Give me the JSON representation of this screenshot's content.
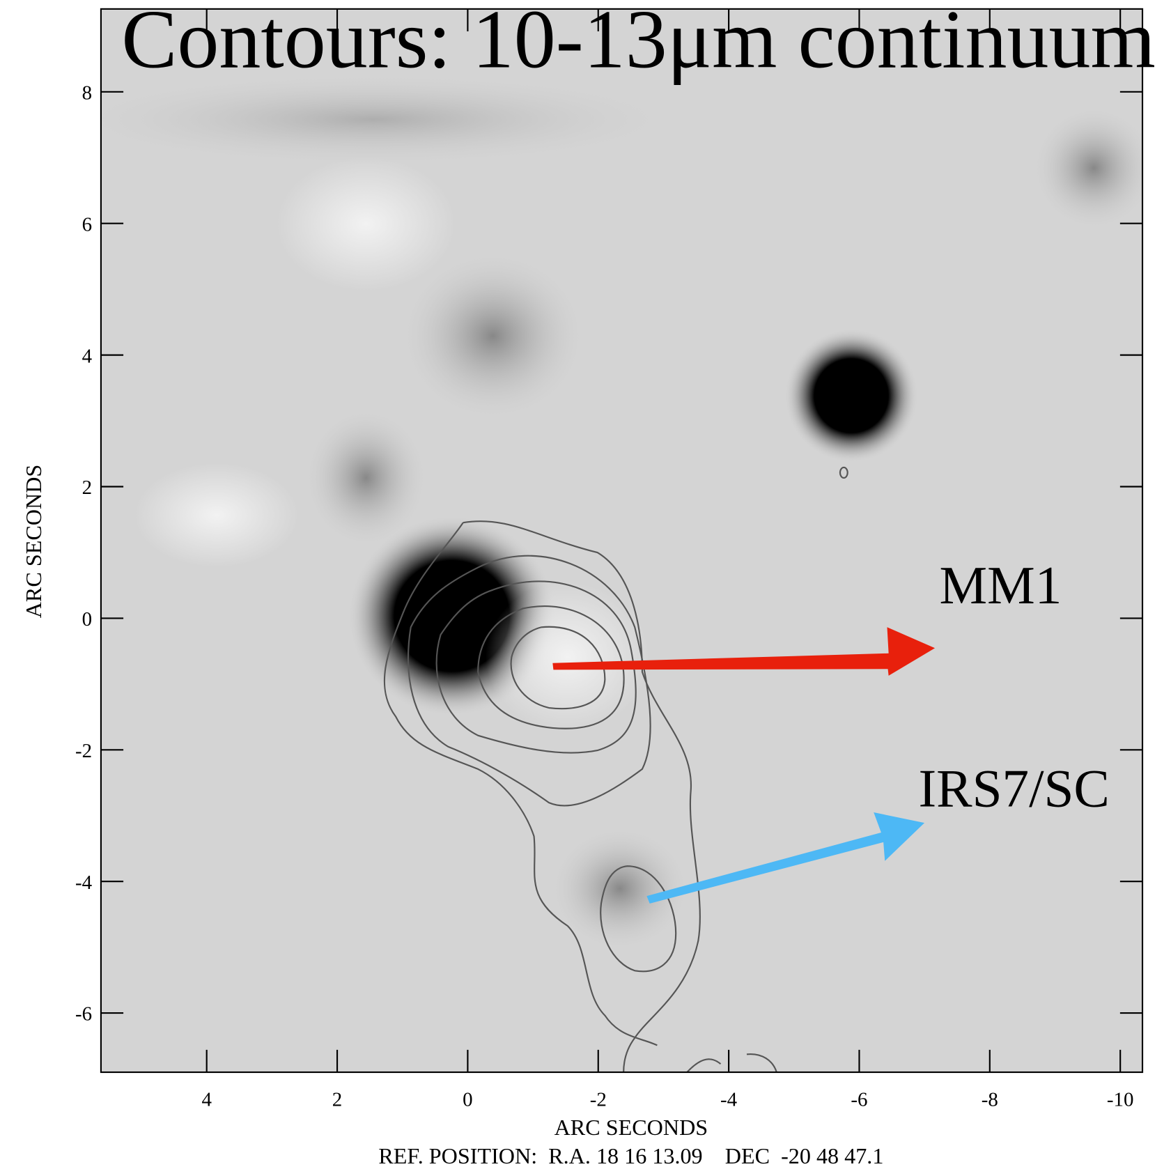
{
  "chart_data": {
    "type": "image",
    "title": "Contours: 10-13μm continuum",
    "xlabel": "ARC SECONDS",
    "ylabel": "ARC SECONDS",
    "footnote": "REF. POSITION:  R.A. 18 16 13.09    DEC  -20 48 47.1",
    "xlim": [
      5.62,
      -10.34
    ],
    "ylim": [
      -6.9,
      9.26
    ],
    "xticks": [
      4,
      2,
      0,
      -2,
      -4,
      -6,
      -8,
      -10
    ],
    "yticks": [
      -6,
      -4,
      -2,
      0,
      2,
      4,
      6,
      8
    ],
    "annotations": [
      {
        "text": "MM1",
        "color": "#e8200c"
      },
      {
        "text": "IRS7/SC",
        "color": "#4db8f5"
      }
    ]
  }
}
